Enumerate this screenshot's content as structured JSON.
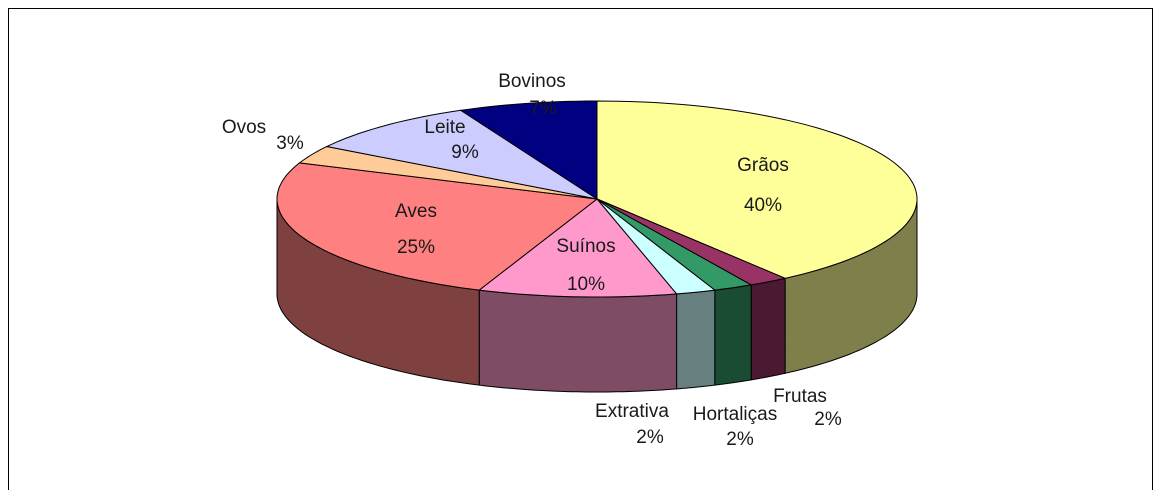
{
  "chart_data": {
    "type": "pie",
    "categories": [
      "Grãos",
      "Frutas",
      "Hortaliças",
      "Extrativa",
      "Suínos",
      "Aves",
      "Ovos",
      "Leite",
      "Bovinos"
    ],
    "values": [
      40,
      2,
      2,
      2,
      10,
      25,
      3,
      9,
      7
    ],
    "value_labels": [
      "40%",
      "2%",
      "2%",
      "2%",
      "10%",
      "25%",
      "3%",
      "9%",
      "7%"
    ],
    "colors": [
      "#ffff99",
      "#993366",
      "#339966",
      "#ccffff",
      "#ff99cc",
      "#ff8080",
      "#ffcc99",
      "#ccccff",
      "#000080"
    ]
  }
}
